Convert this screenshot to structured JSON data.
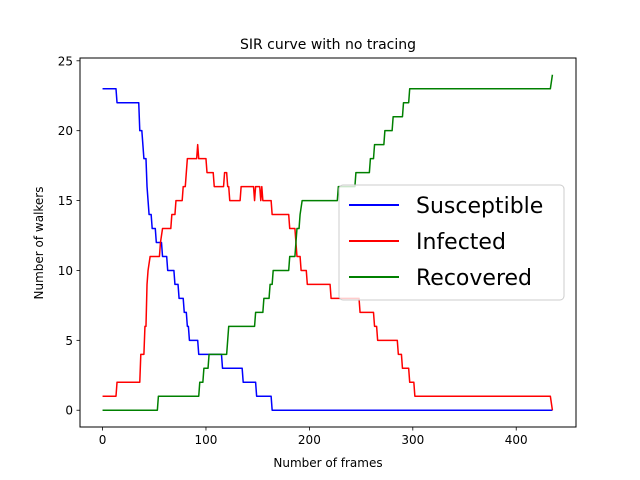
{
  "chart_data": {
    "type": "line",
    "title": "SIR curve with no tracing",
    "xlabel": "Number of frames",
    "ylabel": "Number of walkers",
    "xlim": [
      -21.8,
      457.8
    ],
    "ylim": [
      -1.2,
      25.2
    ],
    "xticks": [
      0,
      100,
      200,
      300,
      400
    ],
    "yticks": [
      0,
      5,
      10,
      15,
      20,
      25
    ],
    "legend_position": "center-right",
    "grid": false,
    "series": [
      {
        "name": "Susceptible",
        "color": "#0000ff",
        "points": [
          [
            0,
            23
          ],
          [
            13,
            23
          ],
          [
            14,
            22
          ],
          [
            35,
            22
          ],
          [
            36,
            20
          ],
          [
            38,
            20
          ],
          [
            39,
            19
          ],
          [
            40,
            18
          ],
          [
            42,
            18
          ],
          [
            43,
            16
          ],
          [
            44,
            15
          ],
          [
            45,
            14
          ],
          [
            47,
            14
          ],
          [
            48,
            13
          ],
          [
            51,
            13
          ],
          [
            52,
            12
          ],
          [
            57,
            12
          ],
          [
            58,
            11
          ],
          [
            62,
            11
          ],
          [
            63,
            10
          ],
          [
            69,
            10
          ],
          [
            70,
            9
          ],
          [
            73,
            9
          ],
          [
            74,
            8
          ],
          [
            78,
            8
          ],
          [
            79,
            7
          ],
          [
            81,
            7
          ],
          [
            82,
            6
          ],
          [
            83,
            6
          ],
          [
            84,
            5
          ],
          [
            92,
            5
          ],
          [
            93,
            4
          ],
          [
            115,
            4
          ],
          [
            116,
            3
          ],
          [
            126,
            3
          ],
          [
            127,
            3
          ],
          [
            135,
            3
          ],
          [
            136,
            2
          ],
          [
            148,
            2
          ],
          [
            149,
            1
          ],
          [
            163,
            1
          ],
          [
            164,
            0
          ],
          [
            435,
            0
          ]
        ]
      },
      {
        "name": "Infected",
        "color": "#ff0000",
        "points": [
          [
            0,
            1
          ],
          [
            13,
            1
          ],
          [
            14,
            2
          ],
          [
            36,
            2
          ],
          [
            37,
            4
          ],
          [
            40,
            4
          ],
          [
            41,
            6
          ],
          [
            42,
            6
          ],
          [
            43,
            9
          ],
          [
            44,
            10
          ],
          [
            46,
            11
          ],
          [
            55,
            11
          ],
          [
            56,
            12
          ],
          [
            58,
            13
          ],
          [
            66,
            13
          ],
          [
            67,
            14
          ],
          [
            70,
            14
          ],
          [
            71,
            15
          ],
          [
            77,
            15
          ],
          [
            78,
            16
          ],
          [
            80,
            16
          ],
          [
            81,
            17
          ],
          [
            82,
            18
          ],
          [
            91,
            18
          ],
          [
            92,
            19
          ],
          [
            93,
            18
          ],
          [
            100,
            18
          ],
          [
            101,
            17
          ],
          [
            107,
            17
          ],
          [
            108,
            16
          ],
          [
            117,
            16
          ],
          [
            118,
            17
          ],
          [
            120,
            17
          ],
          [
            121,
            16
          ],
          [
            122,
            16
          ],
          [
            123,
            15
          ],
          [
            133,
            15
          ],
          [
            134,
            16
          ],
          [
            146,
            16
          ],
          [
            147,
            15
          ],
          [
            148,
            16
          ],
          [
            152,
            16
          ],
          [
            153,
            15
          ],
          [
            154,
            16
          ],
          [
            155,
            15
          ],
          [
            163,
            15
          ],
          [
            164,
            14
          ],
          [
            180,
            14
          ],
          [
            181,
            13
          ],
          [
            186,
            13
          ],
          [
            187,
            12
          ],
          [
            188,
            11
          ],
          [
            191,
            11
          ],
          [
            192,
            10
          ],
          [
            197,
            10
          ],
          [
            198,
            9
          ],
          [
            220,
            9
          ],
          [
            221,
            8
          ],
          [
            248,
            8
          ],
          [
            249,
            7
          ],
          [
            262,
            7
          ],
          [
            263,
            6
          ],
          [
            265,
            6
          ],
          [
            266,
            5
          ],
          [
            285,
            5
          ],
          [
            286,
            4
          ],
          [
            289,
            4
          ],
          [
            290,
            3
          ],
          [
            296,
            3
          ],
          [
            297,
            2
          ],
          [
            301,
            2
          ],
          [
            302,
            1
          ],
          [
            433,
            1
          ],
          [
            435,
            0
          ]
        ]
      },
      {
        "name": "Recovered",
        "color": "#008000",
        "points": [
          [
            0,
            0
          ],
          [
            53,
            0
          ],
          [
            54,
            1
          ],
          [
            85,
            1
          ],
          [
            86,
            1
          ],
          [
            93,
            1
          ],
          [
            94,
            2
          ],
          [
            97,
            2
          ],
          [
            98,
            3
          ],
          [
            102,
            3
          ],
          [
            103,
            4
          ],
          [
            120,
            4
          ],
          [
            121,
            5
          ],
          [
            122,
            6
          ],
          [
            147,
            6
          ],
          [
            148,
            7
          ],
          [
            155,
            7
          ],
          [
            156,
            8
          ],
          [
            161,
            8
          ],
          [
            162,
            9
          ],
          [
            164,
            9
          ],
          [
            165,
            10
          ],
          [
            180,
            10
          ],
          [
            181,
            11
          ],
          [
            186,
            11
          ],
          [
            187,
            12
          ],
          [
            188,
            13
          ],
          [
            190,
            13
          ],
          [
            191,
            14
          ],
          [
            193,
            15
          ],
          [
            210,
            15
          ],
          [
            211,
            15
          ],
          [
            227,
            15
          ],
          [
            228,
            16
          ],
          [
            244,
            16
          ],
          [
            245,
            17
          ],
          [
            258,
            17
          ],
          [
            259,
            18
          ],
          [
            262,
            18
          ],
          [
            263,
            19
          ],
          [
            272,
            19
          ],
          [
            273,
            20
          ],
          [
            280,
            20
          ],
          [
            281,
            21
          ],
          [
            290,
            21
          ],
          [
            291,
            22
          ],
          [
            296,
            22
          ],
          [
            297,
            23
          ],
          [
            433,
            23
          ],
          [
            435,
            24
          ]
        ]
      }
    ]
  }
}
